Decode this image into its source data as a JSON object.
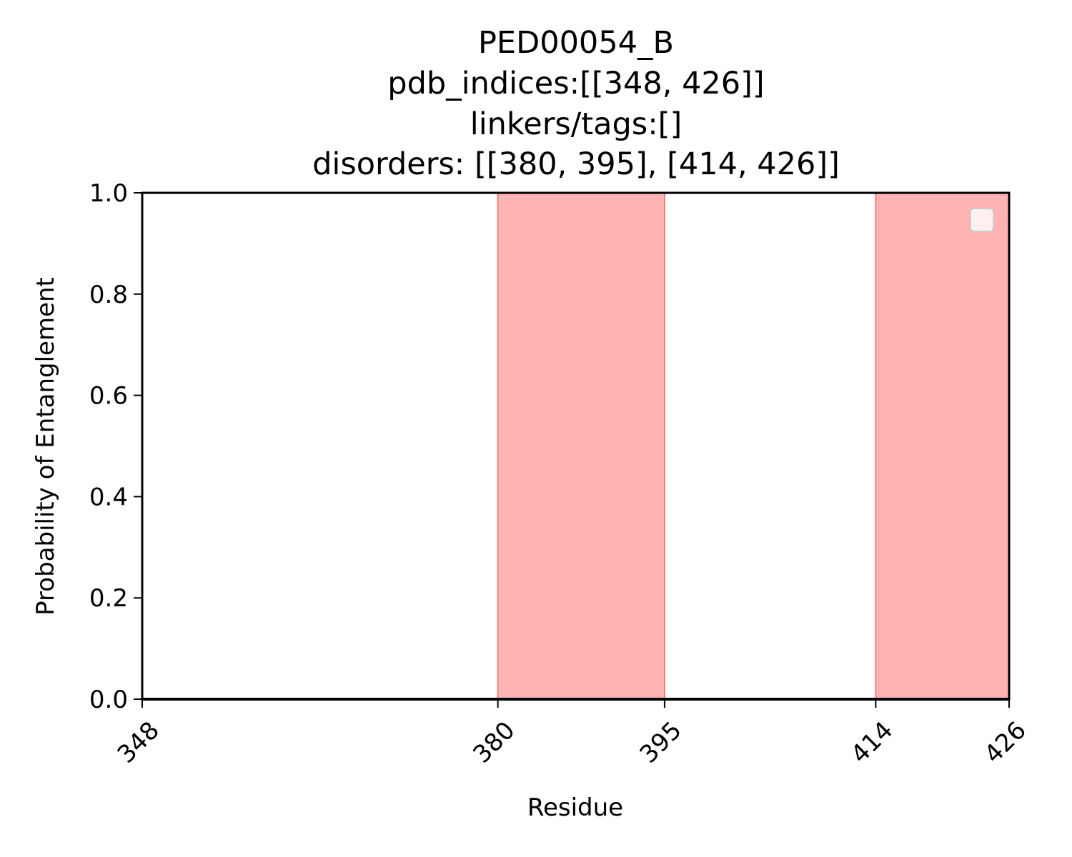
{
  "chart_data": {
    "type": "line",
    "title_lines": [
      "PED00054_B",
      "pdb_indices:[[348, 426]]",
      "linkers/tags:[]",
      "disorders: [[380, 395], [414, 426]]"
    ],
    "xlabel": "Residue",
    "ylabel": "Probability of Entanglement",
    "xlim": [
      348,
      426
    ],
    "ylim": [
      0,
      1
    ],
    "x_ticks": [
      348,
      380,
      395,
      414,
      426
    ],
    "x_tick_labels": [
      "348",
      "380",
      "395",
      "414",
      "426"
    ],
    "y_ticks": [
      0,
      0.2,
      0.4,
      0.6,
      0.8,
      1.0
    ],
    "y_tick_labels": [
      "0.0",
      "0.2",
      "0.4",
      "0.6",
      "0.8",
      "1.0"
    ],
    "x_tick_rotation_deg": 45,
    "shaded_regions": [
      {
        "start": 380,
        "end": 395,
        "color": "#ff9999"
      },
      {
        "start": 414,
        "end": 426,
        "color": "#ff9999"
      }
    ],
    "series": [
      {
        "x": [
          348,
          426
        ],
        "y": [
          0,
          0
        ],
        "color": "#000000"
      }
    ],
    "legend": {
      "placement": "upper-right",
      "entries": []
    },
    "grid": false
  }
}
